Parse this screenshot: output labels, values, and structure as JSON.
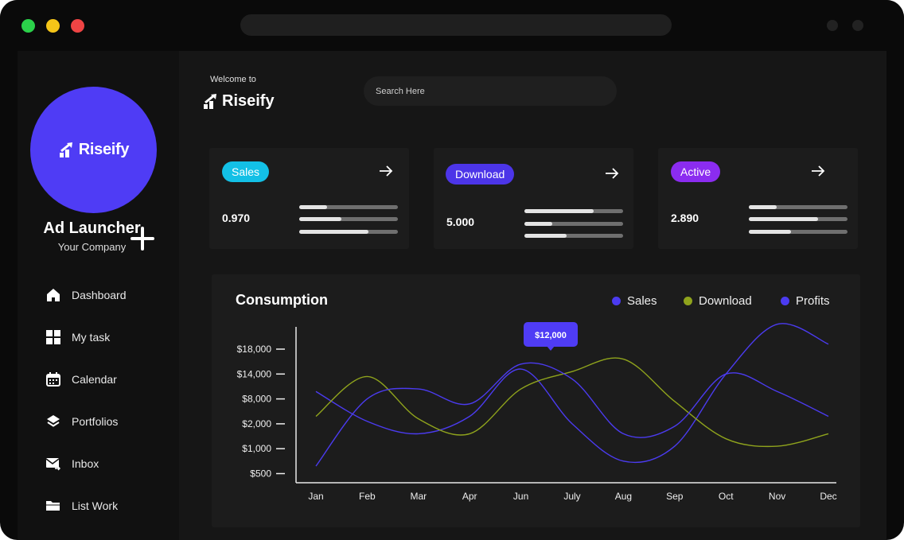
{
  "colors": {
    "accent": "#4f3cf5",
    "sales_badge": "#13c0e6",
    "download_badge": "#4c35e8",
    "active_badge": "#8b2cf0",
    "series_sales": "#4b3bf0",
    "series_download": "#8fa31c",
    "series_profits": "#4b3bf0"
  },
  "sidebar": {
    "brand": "Riseify",
    "app_name": "Ad Launcher",
    "company": "Your Company",
    "items": [
      {
        "label": "Dashboard",
        "icon": "home-icon"
      },
      {
        "label": "My task",
        "icon": "grid-icon"
      },
      {
        "label": "Calendar",
        "icon": "calendar-icon"
      },
      {
        "label": "Portfolios",
        "icon": "layers-icon"
      },
      {
        "label": "Inbox",
        "icon": "mail-icon"
      },
      {
        "label": "List Work",
        "icon": "folder-icon"
      }
    ]
  },
  "header": {
    "welcome": "Welcome to",
    "brand": "Riseify",
    "search_placeholder": "Search Here"
  },
  "cards": [
    {
      "badge": "Sales",
      "value": "0.970",
      "bars": [
        0.28,
        0.43,
        0.7
      ]
    },
    {
      "badge": "Download",
      "value": "5.000",
      "bars": [
        0.7,
        0.28,
        0.43
      ]
    },
    {
      "badge": "Active",
      "value": "2.890",
      "bars": [
        0.28,
        0.7,
        0.43
      ]
    }
  ],
  "chart_data": {
    "type": "line",
    "title": "Consumption",
    "legend": [
      "Sales",
      "Download",
      "Profits"
    ],
    "legend_position": "top-right",
    "categories": [
      "Jan",
      "Feb",
      "Mar",
      "Apr",
      "Jun",
      "July",
      "Aug",
      "Sep",
      "Oct",
      "Nov",
      "Dec"
    ],
    "y_ticks": [
      "$500",
      "$1,000",
      "$2,000",
      "$8,000",
      "$14,000",
      "$18,000"
    ],
    "y_scale": "ordinal-tick",
    "tooltip": {
      "label": "$12,000",
      "category": "July"
    },
    "series": [
      {
        "name": "Sales",
        "values": [
          3.3,
          2.1,
          1.6,
          2.3,
          4.2,
          2.0,
          0.5,
          1.1,
          4.0,
          6.0,
          5.2
        ]
      },
      {
        "name": "Download",
        "values": [
          2.3,
          3.9,
          2.2,
          1.6,
          3.4,
          4.1,
          4.6,
          2.9,
          1.4,
          1.1,
          1.6
        ]
      },
      {
        "name": "Profits",
        "values": [
          0.3,
          3.0,
          3.4,
          2.8,
          4.4,
          3.8,
          1.6,
          1.9,
          4.0,
          3.3,
          2.3
        ]
      }
    ],
    "grid": false
  }
}
